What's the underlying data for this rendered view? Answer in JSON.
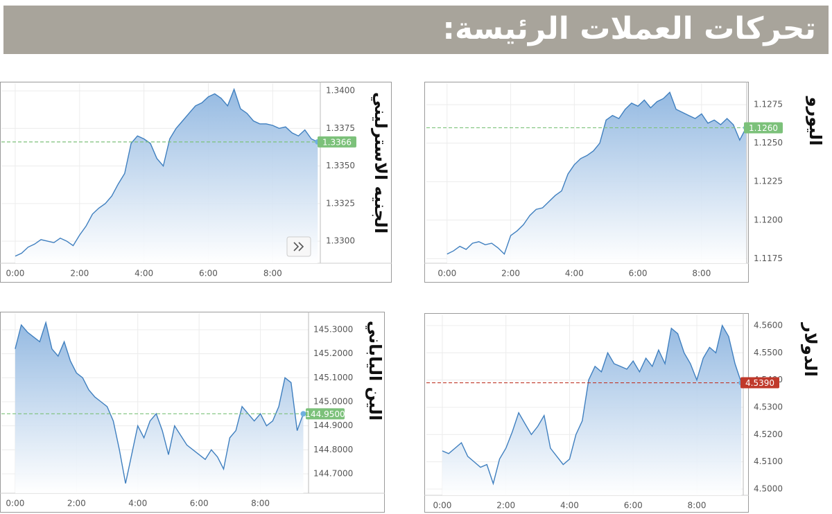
{
  "header": {
    "title": "تحركات العملات الرئيسة:"
  },
  "chart_data": [
    {
      "type": "area",
      "title": "اليورو",
      "color": "#3f7fbf",
      "x": [
        0,
        0.2,
        0.4,
        0.6,
        0.8,
        1.0,
        1.2,
        1.4,
        1.6,
        1.8,
        2.0,
        2.2,
        2.4,
        2.6,
        2.8,
        3.0,
        3.2,
        3.4,
        3.6,
        3.8,
        4.0,
        4.2,
        4.4,
        4.6,
        4.8,
        5.0,
        5.2,
        5.4,
        5.6,
        5.8,
        6.0,
        6.2,
        6.4,
        6.6,
        6.8,
        7.0,
        7.2,
        7.4,
        7.6,
        7.8,
        8.0,
        8.2,
        8.4,
        8.6,
        8.8,
        9.0,
        9.2,
        9.4
      ],
      "values": [
        1.1178,
        1.118,
        1.1183,
        1.1181,
        1.1185,
        1.1186,
        1.1184,
        1.1185,
        1.1182,
        1.1178,
        1.119,
        1.1193,
        1.1197,
        1.1203,
        1.1207,
        1.1208,
        1.1212,
        1.1216,
        1.1219,
        1.123,
        1.1236,
        1.124,
        1.1242,
        1.1245,
        1.125,
        1.1265,
        1.1268,
        1.1266,
        1.1272,
        1.1276,
        1.1274,
        1.1278,
        1.1273,
        1.1277,
        1.1279,
        1.1283,
        1.1272,
        1.127,
        1.1268,
        1.1266,
        1.1269,
        1.1263,
        1.1265,
        1.1262,
        1.1266,
        1.1262,
        1.1252,
        1.126
      ],
      "xlim": [
        -0.65,
        9.42
      ],
      "ylim": [
        1.1172,
        1.1289
      ],
      "xticks": [
        {
          "value": 0,
          "label": "0:00"
        },
        {
          "value": 2,
          "label": "2:00"
        },
        {
          "value": 4,
          "label": "4:00"
        },
        {
          "value": 6,
          "label": "6:00"
        },
        {
          "value": 8,
          "label": "8:00"
        }
      ],
      "yticks": [
        {
          "value": 1.1175,
          "label": "1.1175"
        },
        {
          "value": 1.12,
          "label": "1.1200"
        },
        {
          "value": 1.1225,
          "label": "1.1225"
        },
        {
          "value": 1.125,
          "label": "1.1250"
        },
        {
          "value": 1.1275,
          "label": "1.1275"
        }
      ],
      "grid": true,
      "reference": {
        "value": 1.126,
        "label": "1.1260"
      },
      "reference_color": "#7cc17a"
    },
    {
      "type": "area",
      "title": "الجنيه الاسترليني",
      "color": "#3f7fbf",
      "x": [
        0,
        0.2,
        0.4,
        0.6,
        0.8,
        1.0,
        1.2,
        1.4,
        1.6,
        1.8,
        2.0,
        2.2,
        2.4,
        2.6,
        2.8,
        3.0,
        3.2,
        3.4,
        3.6,
        3.8,
        4.0,
        4.2,
        4.4,
        4.6,
        4.8,
        5.0,
        5.2,
        5.4,
        5.6,
        5.8,
        6.0,
        6.2,
        6.4,
        6.6,
        6.8,
        7.0,
        7.2,
        7.4,
        7.6,
        7.8,
        8.0,
        8.2,
        8.4,
        8.6,
        8.8,
        9.0,
        9.2,
        9.4
      ],
      "values": [
        1.329,
        1.3292,
        1.3296,
        1.3298,
        1.3301,
        1.33,
        1.3299,
        1.3302,
        1.33,
        1.3297,
        1.3304,
        1.331,
        1.3318,
        1.3322,
        1.3325,
        1.333,
        1.3338,
        1.3345,
        1.3365,
        1.337,
        1.3368,
        1.3365,
        1.3355,
        1.335,
        1.3368,
        1.3375,
        1.338,
        1.3385,
        1.339,
        1.3392,
        1.3396,
        1.3398,
        1.3395,
        1.339,
        1.3401,
        1.3388,
        1.3385,
        1.338,
        1.3378,
        1.3378,
        1.3377,
        1.3375,
        1.3376,
        1.3372,
        1.337,
        1.3374,
        1.3368,
        1.3366
      ],
      "xlim": [
        -0.43,
        9.48
      ],
      "ylim": [
        1.32853,
        1.34051
      ],
      "xticks": [
        {
          "value": 0,
          "label": "0:00"
        },
        {
          "value": 2,
          "label": "2:00"
        },
        {
          "value": 4,
          "label": "4:00"
        },
        {
          "value": 6,
          "label": "6:00"
        },
        {
          "value": 8,
          "label": "8:00"
        }
      ],
      "yticks": [
        {
          "value": 1.33,
          "label": "1.3300"
        },
        {
          "value": 1.3325,
          "label": "1.3325"
        },
        {
          "value": 1.335,
          "label": "1.3350"
        },
        {
          "value": 1.3375,
          "label": "1.3375"
        },
        {
          "value": 1.34,
          "label": "1.3400"
        }
      ],
      "grid": true,
      "reference": {
        "value": 1.3366,
        "label": "1.3366"
      },
      "reference_color": "#7cc17a"
    },
    {
      "type": "area",
      "title": "الين الياباني",
      "color": "#3f7fbf",
      "x": [
        0,
        0.2,
        0.4,
        0.6,
        0.8,
        1.0,
        1.2,
        1.4,
        1.6,
        1.8,
        2.0,
        2.2,
        2.4,
        2.6,
        2.8,
        3.0,
        3.2,
        3.4,
        3.6,
        3.8,
        4.0,
        4.2,
        4.4,
        4.6,
        4.8,
        5.0,
        5.2,
        5.4,
        5.6,
        5.8,
        6.0,
        6.2,
        6.4,
        6.6,
        6.8,
        7.0,
        7.2,
        7.4,
        7.6,
        7.8,
        8.0,
        8.2,
        8.4,
        8.6,
        8.8,
        9.0,
        9.2,
        9.4
      ],
      "values": [
        145.22,
        145.32,
        145.29,
        145.27,
        145.25,
        145.33,
        145.22,
        145.19,
        145.25,
        145.17,
        145.12,
        145.1,
        145.05,
        145.02,
        145.0,
        144.98,
        144.92,
        144.8,
        144.66,
        144.78,
        144.9,
        144.85,
        144.92,
        144.95,
        144.88,
        144.78,
        144.9,
        144.86,
        144.82,
        144.8,
        144.78,
        144.76,
        144.8,
        144.77,
        144.72,
        144.85,
        144.88,
        144.98,
        144.95,
        144.92,
        144.95,
        144.9,
        144.92,
        144.98,
        145.1,
        145.08,
        144.88,
        144.95
      ],
      "xlim": [
        -0.45,
        9.57
      ],
      "ylim": [
        144.6192,
        145.3692
      ],
      "xticks": [
        {
          "value": 0,
          "label": "0:00"
        },
        {
          "value": 2,
          "label": "2:00"
        },
        {
          "value": 4,
          "label": "4:00"
        },
        {
          "value": 6,
          "label": "6:00"
        },
        {
          "value": 8,
          "label": "8:00"
        }
      ],
      "yticks": [
        {
          "value": 144.7,
          "label": "144.7000"
        },
        {
          "value": 144.8,
          "label": "144.8000"
        },
        {
          "value": 144.9,
          "label": "144.9000"
        },
        {
          "value": 145,
          "label": "145.0000"
        },
        {
          "value": 145.1,
          "label": "145.1000"
        },
        {
          "value": 145.2,
          "label": "145.2000"
        },
        {
          "value": 145.3,
          "label": "145.3000"
        }
      ],
      "grid": true,
      "reference": {
        "value": 144.95,
        "label": "144.9500"
      },
      "reference_color": "#7cc17a"
    },
    {
      "type": "area",
      "title": "الدولار",
      "color": "#3f7fbf",
      "x": [
        0,
        0.2,
        0.4,
        0.6,
        0.8,
        1.0,
        1.2,
        1.4,
        1.6,
        1.8,
        2.0,
        2.2,
        2.4,
        2.6,
        2.8,
        3.0,
        3.2,
        3.4,
        3.6,
        3.8,
        4.0,
        4.2,
        4.4,
        4.6,
        4.8,
        5.0,
        5.2,
        5.4,
        5.6,
        5.8,
        6.0,
        6.2,
        6.4,
        6.6,
        6.8,
        7.0,
        7.2,
        7.4,
        7.6,
        7.8,
        8.0,
        8.2,
        8.4,
        8.6,
        8.8,
        9.0,
        9.2,
        9.4
      ],
      "values": [
        4.514,
        4.513,
        4.515,
        4.517,
        4.512,
        4.51,
        4.508,
        4.509,
        4.502,
        4.511,
        4.515,
        4.521,
        4.528,
        4.524,
        4.52,
        4.523,
        4.527,
        4.515,
        4.512,
        4.509,
        4.511,
        4.52,
        4.525,
        4.54,
        4.545,
        4.543,
        4.55,
        4.546,
        4.545,
        4.544,
        4.547,
        4.543,
        4.548,
        4.545,
        4.551,
        4.546,
        4.559,
        4.557,
        4.55,
        4.546,
        4.54,
        4.548,
        4.552,
        4.55,
        4.56,
        4.556,
        4.546,
        4.539
      ],
      "xlim": [
        -0.5,
        9.46
      ],
      "ylim": [
        4.4977,
        4.5638
      ],
      "xticks": [
        {
          "value": 0,
          "label": "0:00"
        },
        {
          "value": 2,
          "label": "2:00"
        },
        {
          "value": 4,
          "label": "4:00"
        },
        {
          "value": 6,
          "label": "6:00"
        },
        {
          "value": 8,
          "label": "8:00"
        }
      ],
      "yticks": [
        {
          "value": 4.5,
          "label": "4.5000"
        },
        {
          "value": 4.51,
          "label": "4.5100"
        },
        {
          "value": 4.52,
          "label": "4.5200"
        },
        {
          "value": 4.53,
          "label": "4.5300"
        },
        {
          "value": 4.54,
          "label": "4.5400"
        },
        {
          "value": 4.55,
          "label": "4.5500"
        },
        {
          "value": 4.56,
          "label": "4.5600"
        }
      ],
      "grid": true,
      "reference": {
        "value": 4.539,
        "label": "4.5390"
      },
      "reference_color": "#c0392b"
    }
  ]
}
